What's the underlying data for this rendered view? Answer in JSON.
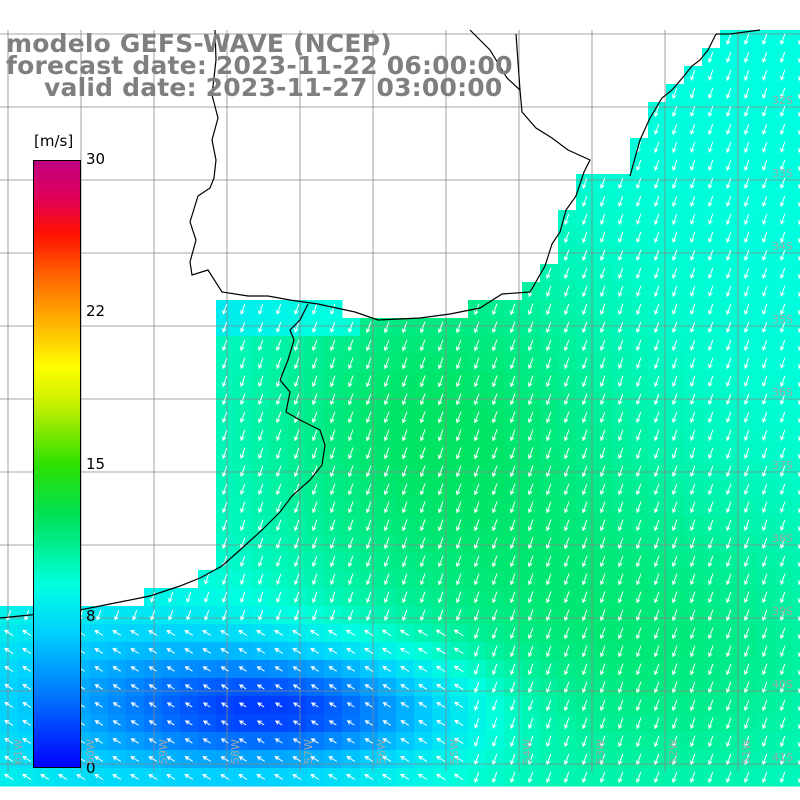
{
  "header": {
    "line1": "modelo GEFS-WAVE (NCEP)",
    "line2": "forecast date: 2023-11-22 06:00:00",
    "line3": "valid date: 2023-11-27 03:00:00"
  },
  "colorbar": {
    "unit": "[m/s]",
    "ticks": [
      "30",
      "22",
      "15",
      "8",
      "0"
    ],
    "colors": [
      "#0000ff",
      "#00d0ff",
      "#00ffe0",
      "#00e050",
      "#ffff00",
      "#ff7000",
      "#ff1000",
      "#c00080"
    ]
  },
  "lat_labels": [
    "32S",
    "33S",
    "34S",
    "35S",
    "36S",
    "37S",
    "38S",
    "39S",
    "40S",
    "41S"
  ],
  "lon_labels": [
    "61W",
    "60W",
    "59W",
    "58W",
    "57W",
    "56W",
    "55W",
    "54W",
    "53W",
    "52W",
    "51W"
  ],
  "colors": {
    "land": "#ffffff",
    "grid": "#888888",
    "coast": "#000000",
    "arrow": "#ffffff",
    "title": "#7f7f7f"
  }
}
